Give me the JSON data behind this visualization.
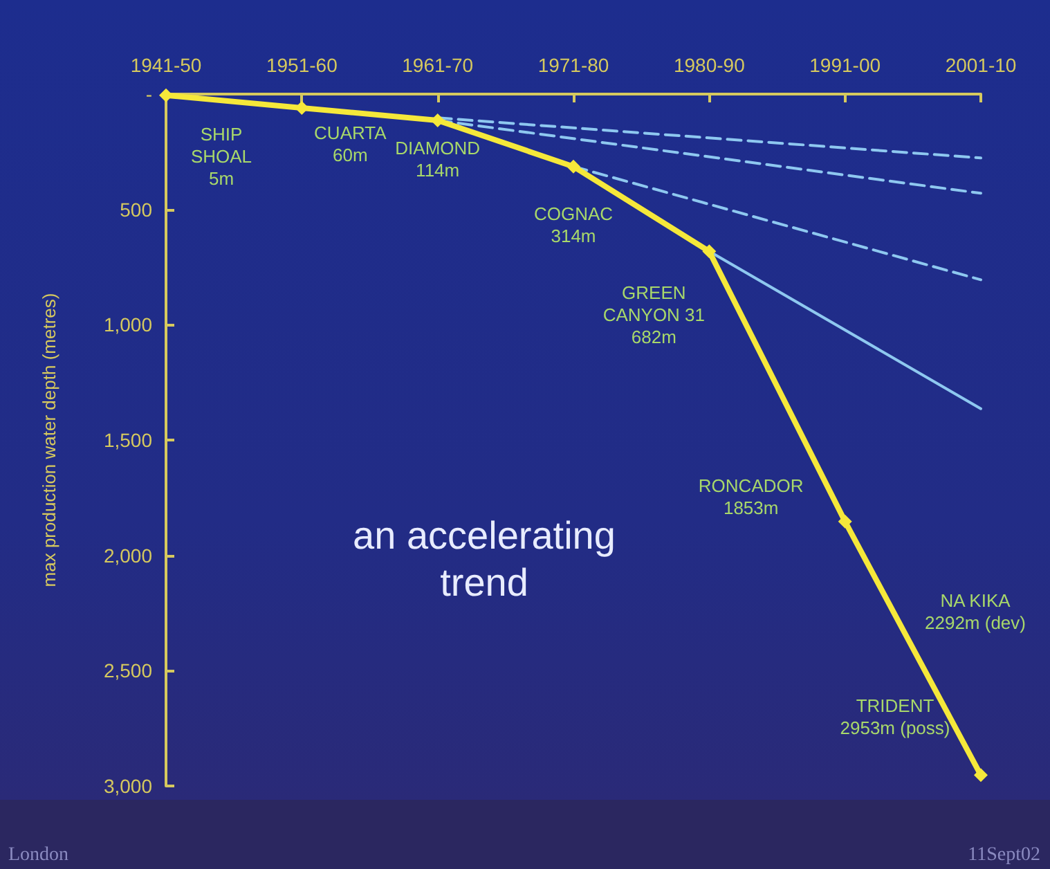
{
  "chart_data": {
    "type": "line",
    "ylabel": "max production water depth (metres)",
    "categories": [
      "1941-50",
      "1951-60",
      "1961-70",
      "1971-80",
      "1980-90",
      "1991-00",
      "2001-10"
    ],
    "ylim": [
      3000,
      0
    ],
    "yticks": [
      {
        "value": 0,
        "label": "-"
      },
      {
        "value": 500,
        "label": "500"
      },
      {
        "value": 1000,
        "label": "1,000"
      },
      {
        "value": 1500,
        "label": "1,500"
      },
      {
        "value": 2000,
        "label": "2,000"
      },
      {
        "value": 2500,
        "label": "2,500"
      },
      {
        "value": 3000,
        "label": "3,000"
      }
    ],
    "grid": false,
    "series": [
      {
        "color": "#8ec8f0",
        "values": [
          null,
          null,
          103,
          null,
          null,
          null,
          277
        ],
        "marker": "none",
        "line_style": "dashed"
      },
      {
        "color": "#8ec8f0",
        "values": [
          null,
          null,
          114,
          null,
          null,
          null,
          430
        ],
        "marker": "none",
        "line_style": "dashed"
      },
      {
        "color": "#8ec8f0",
        "values": [
          null,
          null,
          null,
          314,
          null,
          null,
          805
        ],
        "marker": "none",
        "line_style": "dashed"
      },
      {
        "color": "#8ec8f0",
        "values": [
          null,
          null,
          null,
          null,
          682,
          null,
          1364
        ],
        "marker": "none",
        "line_style": "solid"
      },
      {
        "color": "#f5e83a",
        "values": [
          5,
          60,
          114,
          314,
          682,
          1853,
          2953
        ],
        "marker": "diamond",
        "line_style": "solid"
      }
    ],
    "annotations": [
      {
        "text": "SHIP\nSHOAL\n5m",
        "x": "1941-50",
        "y": 5
      },
      {
        "text": "CUARTA\n60m",
        "x": "1951-60",
        "y": 60
      },
      {
        "text": "DIAMOND\n114m",
        "x": "1961-70",
        "y": 114
      },
      {
        "text": "COGNAC\n314m",
        "x": "1971-80",
        "y": 314
      },
      {
        "text": "GREEN\nCANYON 31\n682m",
        "x": "1980-90",
        "y": 682
      },
      {
        "text": "RONCADOR\n1853m",
        "x": "1991-00",
        "y": 1853
      },
      {
        "text": "TRIDENT\n2953m (poss)",
        "x": "2001-10",
        "y": 2953
      },
      "NA KIKA\n2292m (dev)",
      "an accelerating\ntrend",
      "London",
      "11Sept02"
    ]
  }
}
